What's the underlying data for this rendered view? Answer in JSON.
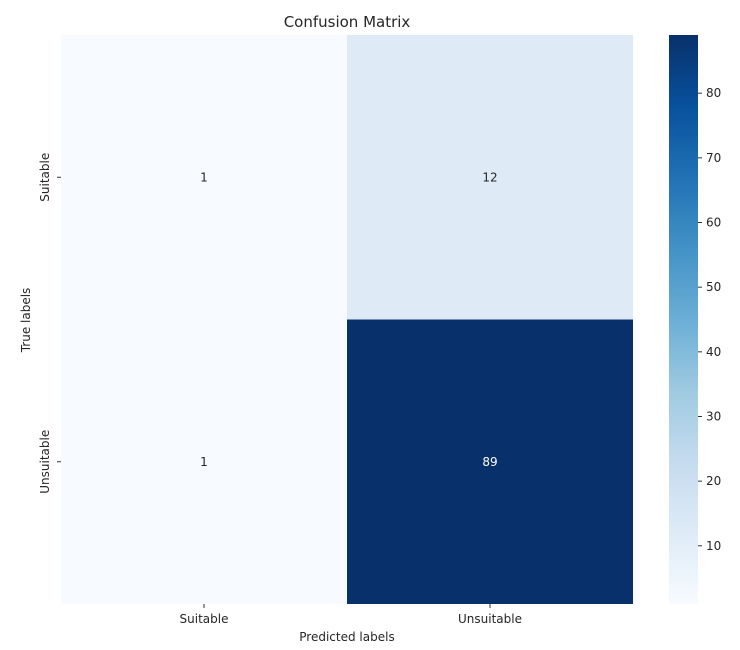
{
  "chart_data": {
    "type": "heatmap",
    "title": "Confusion Matrix",
    "xlabel": "Predicted labels",
    "ylabel": "True labels",
    "x_categories": [
      "Suitable",
      "Unsuitable"
    ],
    "y_categories": [
      "Suitable",
      "Unsuitable"
    ],
    "matrix": [
      [
        1,
        12
      ],
      [
        1,
        89
      ]
    ],
    "colormap": "Blues",
    "colorbar": {
      "range": [
        1,
        89
      ],
      "ticks": [
        10,
        20,
        30,
        40,
        50,
        60,
        70,
        80
      ]
    },
    "colors": {
      "low": "#f7fbff",
      "high": "#08306b",
      "text_dark": "#262626",
      "text_light": "#ffffff"
    }
  }
}
